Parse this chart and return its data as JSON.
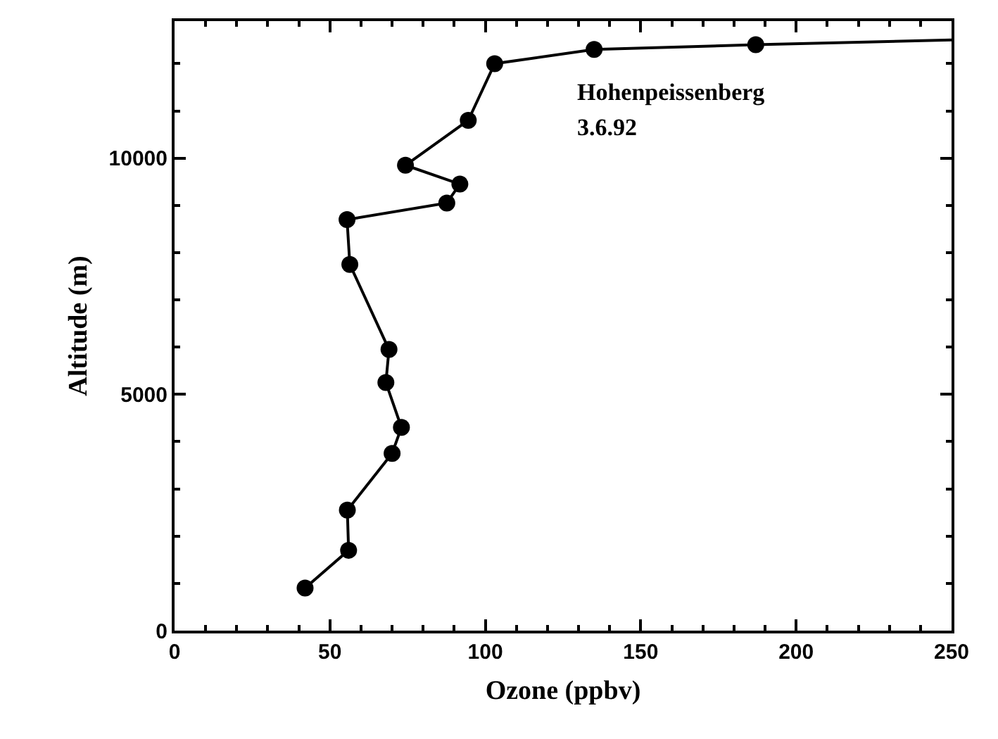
{
  "chart_data": {
    "type": "line",
    "xlabel": "Ozone (ppbv)",
    "ylabel": "Altitude (m)",
    "annotations": [
      "Hohenpeissenberg",
      "3.6.92"
    ],
    "series": [
      {
        "color": "#000000",
        "marker": "circle",
        "x": [
          42,
          56,
          55.6,
          70,
          73,
          68,
          69,
          56.4,
          55.5,
          87.6,
          91.8,
          74.3,
          94.5,
          103,
          135,
          187
        ],
        "values": [
          900,
          1700,
          2550,
          3750,
          4300,
          5250,
          5950,
          7750,
          8700,
          9050,
          9450,
          9850,
          10800,
          12000,
          12300,
          12400
        ]
      },
      {
        "color": "#000000",
        "marker": "none",
        "x": [
          187,
          250
        ],
        "values": [
          12400,
          12500
        ]
      }
    ],
    "xlim": [
      0,
      250
    ],
    "xticks": [
      0,
      50,
      100,
      150,
      200,
      250
    ],
    "ylim": [
      0,
      12900
    ],
    "yticks": [
      0,
      5000,
      10000
    ],
    "line_style": "solid"
  }
}
